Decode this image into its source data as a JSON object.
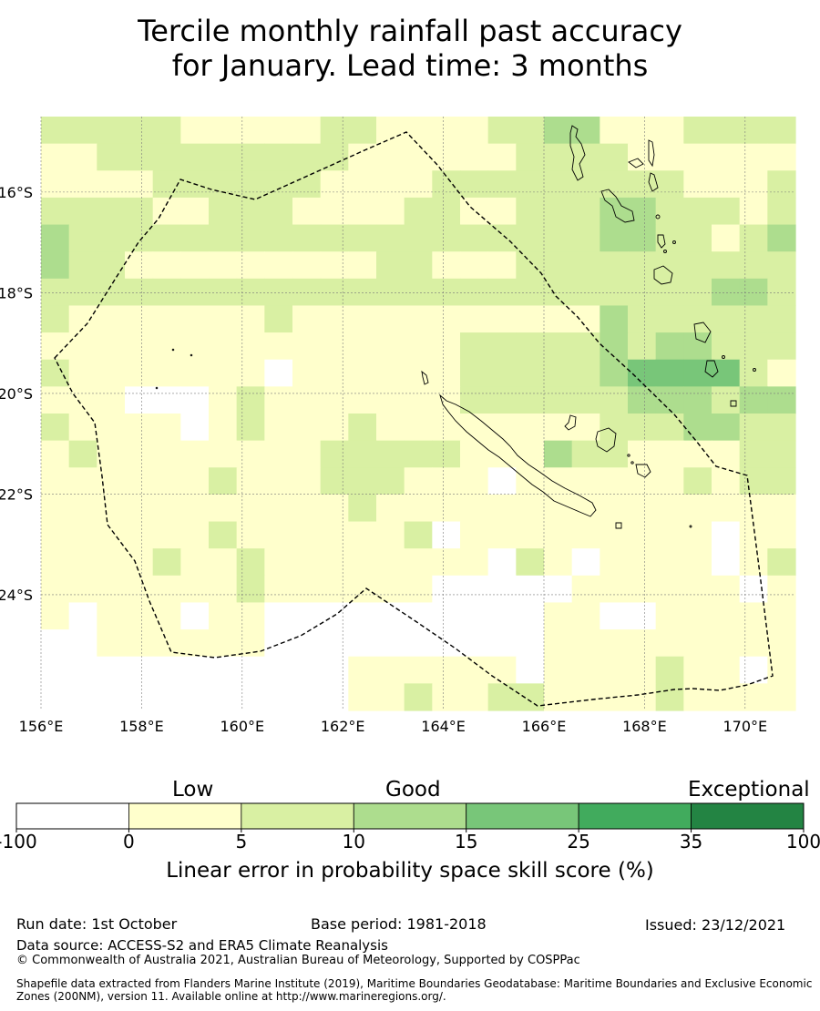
{
  "title": {
    "line1": "Tercile monthly rainfall past accuracy",
    "line2": "for January. Lead time: 3 months"
  },
  "map": {
    "lon_labels": [
      "156°E",
      "158°E",
      "160°E",
      "162°E",
      "164°E",
      "166°E",
      "168°E",
      "170°E"
    ],
    "lat_labels": [
      "16°S",
      "18°S",
      "20°S",
      "22°S",
      "24°S"
    ],
    "lon_range": [
      156,
      171
    ],
    "lat_range": [
      -14.5,
      -26.3
    ],
    "grid_values": [
      [
        2,
        2,
        2,
        2,
        2,
        1,
        1,
        1,
        1,
        1,
        2,
        2,
        1,
        1,
        1,
        1,
        2,
        2,
        3,
        3,
        1,
        1,
        1,
        2,
        2,
        2,
        2
      ],
      [
        1,
        1,
        2,
        2,
        2,
        2,
        2,
        2,
        2,
        2,
        2,
        1,
        1,
        1,
        1,
        1,
        1,
        2,
        2,
        2,
        2,
        1,
        1,
        1,
        1,
        1,
        1
      ],
      [
        1,
        1,
        1,
        1,
        2,
        2,
        2,
        2,
        2,
        2,
        1,
        1,
        1,
        1,
        2,
        2,
        2,
        2,
        2,
        2,
        2,
        2,
        2,
        1,
        1,
        1,
        2
      ],
      [
        2,
        2,
        2,
        2,
        1,
        1,
        2,
        2,
        2,
        1,
        1,
        1,
        1,
        2,
        2,
        1,
        1,
        2,
        2,
        2,
        3,
        3,
        2,
        2,
        2,
        1,
        2
      ],
      [
        3,
        2,
        2,
        2,
        2,
        2,
        2,
        2,
        2,
        2,
        2,
        2,
        2,
        2,
        2,
        2,
        2,
        2,
        2,
        2,
        3,
        3,
        2,
        2,
        1,
        2,
        3
      ],
      [
        3,
        2,
        2,
        1,
        1,
        1,
        1,
        1,
        1,
        1,
        1,
        1,
        2,
        2,
        1,
        1,
        1,
        2,
        2,
        2,
        2,
        2,
        2,
        2,
        2,
        2,
        2
      ],
      [
        2,
        2,
        2,
        2,
        2,
        2,
        2,
        2,
        2,
        2,
        2,
        2,
        2,
        2,
        2,
        2,
        2,
        2,
        2,
        2,
        2,
        2,
        2,
        2,
        3,
        3,
        2
      ],
      [
        2,
        1,
        1,
        1,
        1,
        1,
        1,
        1,
        2,
        1,
        1,
        1,
        1,
        1,
        1,
        1,
        1,
        1,
        1,
        1,
        3,
        2,
        2,
        2,
        2,
        2,
        2
      ],
      [
        1,
        1,
        1,
        1,
        1,
        1,
        1,
        1,
        1,
        1,
        1,
        1,
        1,
        1,
        1,
        2,
        2,
        2,
        2,
        2,
        3,
        2,
        3,
        3,
        2,
        2,
        2
      ],
      [
        2,
        1,
        1,
        1,
        1,
        1,
        1,
        1,
        0,
        1,
        1,
        1,
        1,
        1,
        1,
        2,
        2,
        2,
        2,
        2,
        3,
        4,
        4,
        4,
        4,
        2,
        1
      ],
      [
        1,
        1,
        1,
        0,
        0,
        0,
        1,
        2,
        1,
        1,
        1,
        1,
        1,
        1,
        1,
        2,
        2,
        2,
        2,
        2,
        2,
        3,
        3,
        3,
        2,
        3,
        3
      ],
      [
        2,
        1,
        1,
        1,
        1,
        0,
        1,
        2,
        1,
        1,
        1,
        2,
        1,
        1,
        1,
        1,
        1,
        1,
        1,
        1,
        2,
        2,
        2,
        3,
        3,
        2,
        2
      ],
      [
        1,
        2,
        1,
        1,
        1,
        1,
        1,
        1,
        1,
        1,
        2,
        2,
        2,
        2,
        2,
        1,
        1,
        1,
        3,
        2,
        2,
        1,
        1,
        1,
        1,
        2,
        2
      ],
      [
        1,
        1,
        1,
        1,
        1,
        1,
        2,
        1,
        1,
        1,
        2,
        2,
        2,
        1,
        1,
        1,
        0,
        1,
        1,
        1,
        1,
        1,
        1,
        2,
        1,
        2,
        2
      ],
      [
        1,
        1,
        1,
        1,
        1,
        1,
        1,
        1,
        1,
        1,
        1,
        2,
        1,
        1,
        1,
        1,
        1,
        1,
        1,
        1,
        1,
        1,
        1,
        1,
        1,
        1,
        1
      ],
      [
        1,
        1,
        1,
        1,
        1,
        1,
        2,
        1,
        1,
        1,
        1,
        1,
        1,
        2,
        0,
        1,
        1,
        1,
        1,
        1,
        1,
        1,
        1,
        1,
        0,
        1,
        1
      ],
      [
        1,
        1,
        1,
        1,
        2,
        1,
        1,
        2,
        1,
        1,
        1,
        1,
        1,
        1,
        1,
        1,
        0,
        2,
        1,
        0,
        1,
        1,
        1,
        1,
        0,
        1,
        2
      ],
      [
        1,
        1,
        1,
        1,
        1,
        1,
        1,
        2,
        1,
        1,
        1,
        1,
        1,
        1,
        0,
        0,
        0,
        0,
        0,
        1,
        1,
        1,
        1,
        1,
        1,
        0,
        1
      ],
      [
        1,
        0,
        1,
        1,
        1,
        0,
        1,
        1,
        0,
        0,
        0,
        0,
        0,
        0,
        0,
        0,
        0,
        0,
        1,
        1,
        0,
        0,
        1,
        1,
        1,
        1,
        1
      ],
      [
        0,
        0,
        1,
        1,
        1,
        1,
        1,
        1,
        0,
        0,
        0,
        0,
        0,
        0,
        0,
        0,
        0,
        0,
        1,
        1,
        1,
        1,
        1,
        1,
        1,
        1,
        1
      ],
      [
        0,
        0,
        0,
        0,
        0,
        0,
        0,
        0,
        0,
        0,
        0,
        1,
        1,
        1,
        1,
        1,
        1,
        0,
        1,
        1,
        1,
        1,
        2,
        1,
        1,
        0,
        1
      ],
      [
        0,
        0,
        0,
        0,
        0,
        0,
        0,
        0,
        0,
        0,
        0,
        1,
        1,
        2,
        1,
        1,
        2,
        2,
        1,
        1,
        1,
        1,
        2,
        1,
        1,
        1,
        1
      ]
    ]
  },
  "colorbar": {
    "headings": {
      "low": "Low",
      "good": "Good",
      "exceptional": "Exceptional"
    },
    "ticks": [
      "-100",
      "0",
      "5",
      "10",
      "15",
      "25",
      "35",
      "100"
    ],
    "colors": [
      "#ffffff",
      "#ffffcc",
      "#d9f0a3",
      "#addd8e",
      "#78c679",
      "#41ab5d",
      "#238443"
    ],
    "label": "Linear error in probability space skill score (%)"
  },
  "footer": {
    "run_date": "Run date: 1st October",
    "base_period": "Base period: 1981-2018",
    "issued": "Issued: 23/12/2021",
    "data_source": "Data source: ACCESS-S2 and ERA5 Climate Reanalysis",
    "copyright": "© Commonwealth of Australia 2021, Australian Bureau of Meteorology, Supported by COSPPac",
    "shapefile_line1": "Shapefile data extracted from Flanders Marine Institute (2019), Maritime Boundaries Geodatabase: Maritime Boundaries and Exclusive Economic",
    "shapefile_line2": "Zones (200NM), version 11. Available online at http://www.marineregions.org/."
  }
}
